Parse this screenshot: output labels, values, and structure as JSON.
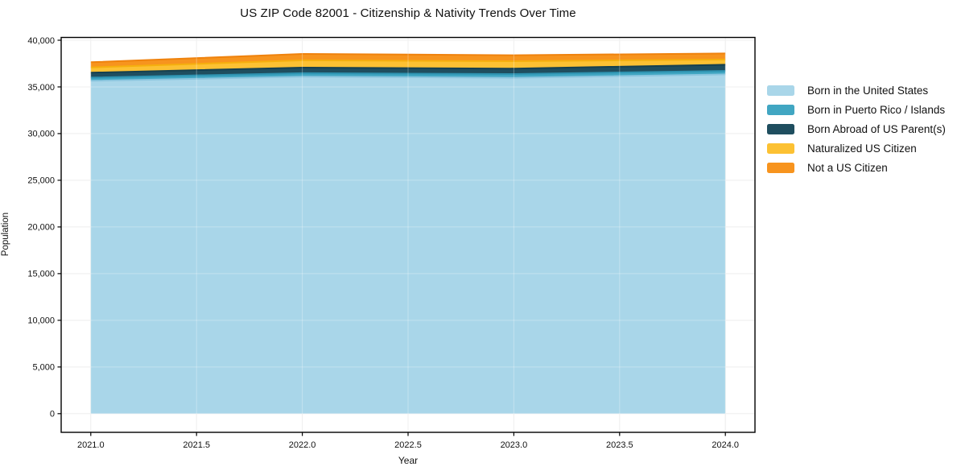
{
  "chart_data": {
    "type": "area",
    "stacked": true,
    "title": "US ZIP Code 82001 - Citizenship & Nativity Trends Over Time",
    "xlabel": "Year",
    "ylabel": "Population",
    "x": [
      2021,
      2022,
      2023,
      2024
    ],
    "series": [
      {
        "name": "Born in the United States",
        "color": "#a9d6e9",
        "line_color": "#8cc6df",
        "values": [
          35650,
          36100,
          35980,
          36340
        ]
      },
      {
        "name": "Born in Puerto Rico / Islands",
        "color": "#41a6c2",
        "line_color": "#2e93b1",
        "values": [
          350,
          370,
          400,
          370
        ]
      },
      {
        "name": "Born Abroad of US Parent(s)",
        "color": "#1f4e5f",
        "line_color": "#16404f",
        "values": [
          520,
          600,
          580,
          670
        ]
      },
      {
        "name": "Naturalized US Citizen",
        "color": "#fcc133",
        "line_color": "#f5af0e",
        "values": [
          570,
          780,
          800,
          560
        ]
      },
      {
        "name": "Not a US Citizen",
        "color": "#f7941e",
        "line_color": "#ef820d",
        "values": [
          550,
          680,
          630,
          640
        ]
      }
    ],
    "xlim": [
      2020.86,
      2024.14
    ],
    "ylim": [
      -2000,
      40300
    ],
    "xticks": {
      "values": [
        2021.0,
        2021.5,
        2022.0,
        2022.5,
        2023.0,
        2023.5,
        2024.0
      ],
      "labels": [
        "2021.0",
        "2021.5",
        "2022.0",
        "2022.5",
        "2023.0",
        "2023.5",
        "2024.0"
      ]
    },
    "yticks": {
      "values": [
        0,
        5000,
        10000,
        15000,
        20000,
        25000,
        30000,
        35000,
        40000
      ],
      "labels": [
        "0",
        "5,000",
        "10,000",
        "15,000",
        "20,000",
        "25,000",
        "30,000",
        "35,000",
        "40,000"
      ]
    },
    "grid": true,
    "grid_color": "#e8e8e8",
    "axis_color": "#000000",
    "tick_label_color": "#111111",
    "background": "#ffffff",
    "legend_position": "right"
  }
}
